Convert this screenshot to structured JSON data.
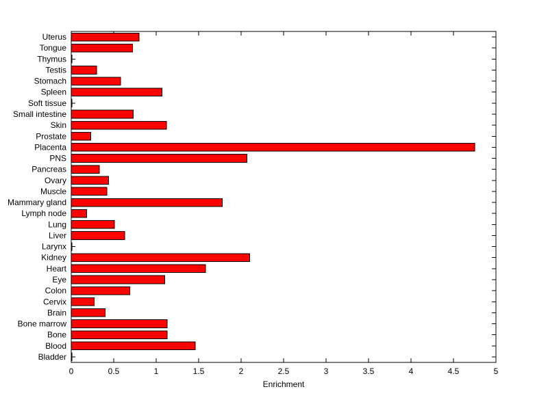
{
  "chart_data": {
    "type": "bar",
    "orientation": "horizontal",
    "title": "",
    "xlabel": "Enrichment",
    "ylabel": "",
    "xlim": [
      0,
      5
    ],
    "xticks": [
      0,
      0.5,
      1,
      1.5,
      2,
      2.5,
      3,
      3.5,
      4,
      4.5,
      5
    ],
    "xtick_labels": [
      "0",
      "0.5",
      "1",
      "1.5",
      "2",
      "2.5",
      "3",
      "3.5",
      "4",
      "4.5",
      "5"
    ],
    "categories": [
      "Uterus",
      "Tongue",
      "Thymus",
      "Testis",
      "Stomach",
      "Spleen",
      "Soft tissue",
      "Small intestine",
      "Skin",
      "Prostate",
      "Placenta",
      "PNS",
      "Pancreas",
      "Ovary",
      "Muscle",
      "Mammary gland",
      "Lymph node",
      "Lung",
      "Liver",
      "Larynx",
      "Kidney",
      "Heart",
      "Eye",
      "Colon",
      "Cervix",
      "Brain",
      "Bone marrow",
      "Bone",
      "Blood",
      "Bladder"
    ],
    "values": [
      0.8,
      0.72,
      0,
      0.3,
      0.58,
      1.07,
      0,
      0.73,
      1.12,
      0.23,
      4.75,
      2.07,
      0.33,
      0.44,
      0.42,
      1.78,
      0.18,
      0.51,
      0.63,
      0,
      2.1,
      1.58,
      1.1,
      0.69,
      0.27,
      0.4,
      1.13,
      1.13,
      1.46,
      0
    ],
    "bar_color": "#FF0000",
    "bar_edge_color": "#000000",
    "axis_color": "#000000",
    "background": "#FFFFFF",
    "grid": false,
    "legend": null
  }
}
